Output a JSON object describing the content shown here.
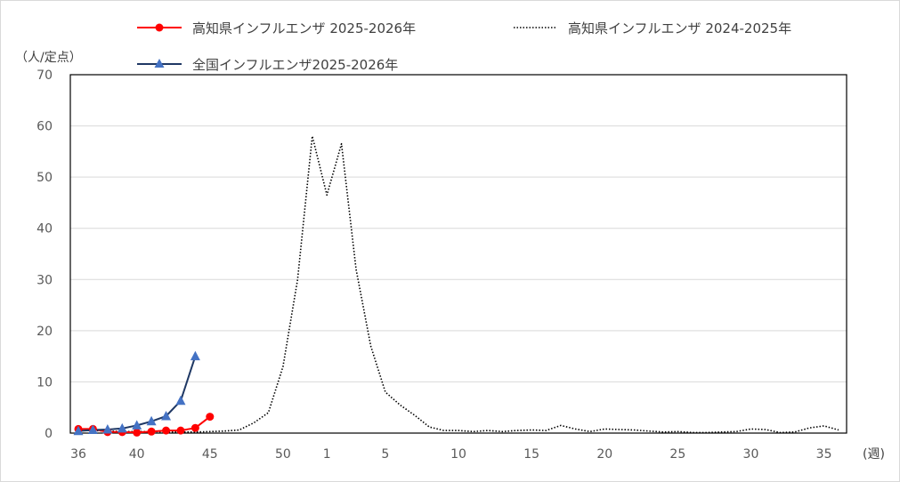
{
  "chart_data": {
    "type": "line",
    "y_unit_label": "（人/定点）",
    "x_unit_label": "(週)",
    "ylim": [
      0,
      70
    ],
    "y_ticks": [
      0,
      10,
      20,
      30,
      40,
      50,
      60,
      70
    ],
    "grid": true,
    "legend_position": "top",
    "x_ticks": [
      {
        "label": "36",
        "i": 0
      },
      {
        "label": "40",
        "i": 4
      },
      {
        "label": "45",
        "i": 9
      },
      {
        "label": "50",
        "i": 14
      },
      {
        "label": "1",
        "i": 17
      },
      {
        "label": "5",
        "i": 21
      },
      {
        "label": "10",
        "i": 26
      },
      {
        "label": "15",
        "i": 31
      },
      {
        "label": "20",
        "i": 36
      },
      {
        "label": "25",
        "i": 41
      },
      {
        "label": "30",
        "i": 46
      },
      {
        "label": "35",
        "i": 51
      }
    ],
    "series": [
      {
        "name": "高知県インフルエンザ 2024-2025年",
        "color": "#000000",
        "style": "dotted",
        "marker": "none",
        "values": [
          0.5,
          0.5,
          0.4,
          0.3,
          0.3,
          0.3,
          0.2,
          0.2,
          0.2,
          0.3,
          0.4,
          0.6,
          2,
          4,
          13,
          30,
          58,
          46.5,
          56.5,
          32,
          17,
          8,
          5.5,
          3.5,
          1.2,
          0.5,
          0.5,
          0.3,
          0.5,
          0.3,
          0.5,
          0.6,
          0.5,
          1.5,
          0.8,
          0.3,
          0.8,
          0.7,
          0.6,
          0.4,
          0.2,
          0.3,
          0.1,
          0.1,
          0.2,
          0.3,
          0.8,
          0.7,
          0.1,
          0.2,
          1,
          1.4,
          0.6
        ]
      },
      {
        "name": "高知県インフルエンザ 2025-2026年",
        "color": "#ff0000",
        "style": "solid",
        "marker": "circle",
        "values": [
          0.8,
          0.8,
          0.2,
          0.2,
          0.1,
          0.3,
          0.5,
          0.5,
          1,
          3.2
        ]
      },
      {
        "name": "全国インフルエンザ2025-2026年",
        "color": "#4472c4",
        "line_color": "#1f3864",
        "style": "solid",
        "marker": "triangle",
        "values": [
          0.4,
          0.6,
          0.7,
          0.9,
          1.5,
          2.3,
          3.3,
          6.3,
          15
        ]
      }
    ]
  }
}
